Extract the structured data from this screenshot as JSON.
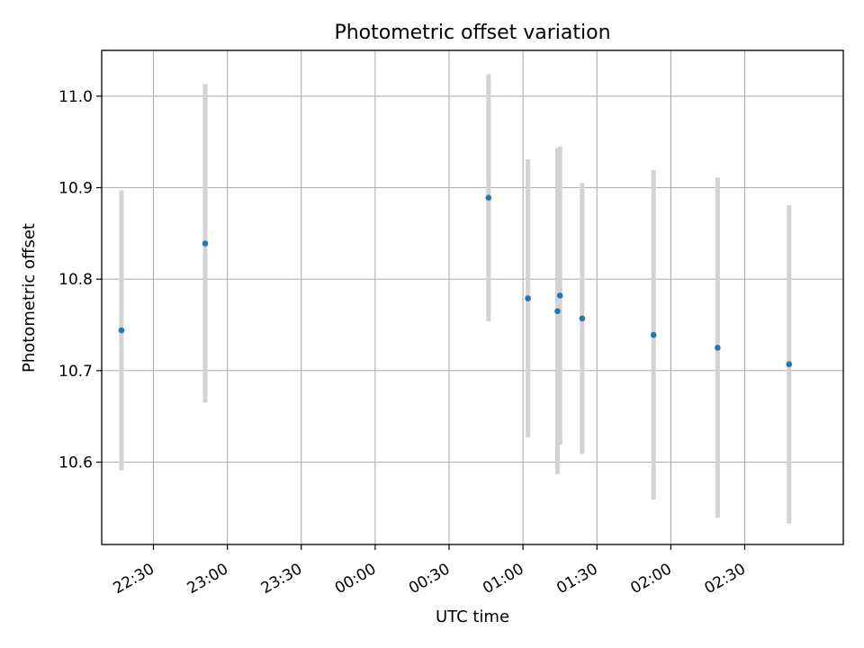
{
  "chart_data": {
    "type": "scatter",
    "title": "Photometric offset variation",
    "xlabel": "UTC time",
    "ylabel": "Photometric offset",
    "x_ticks": [
      "22:30",
      "23:00",
      "23:30",
      "00:00",
      "00:30",
      "01:00",
      "01:30",
      "02:00",
      "02:30"
    ],
    "y_ticks": [
      "10.6",
      "10.7",
      "10.8",
      "10.9",
      "11.0"
    ],
    "x_tick_values": [
      "22:30",
      "23:00",
      "23:30",
      "00:00",
      "00:30",
      "01:00",
      "01:30",
      "02:00",
      "02:30"
    ],
    "y_tick_values": [
      10.6,
      10.7,
      10.8,
      10.9,
      11.0
    ],
    "xlim": [
      "22:09",
      "03:10"
    ],
    "ylim": [
      10.51,
      11.05
    ],
    "grid": true,
    "points": [
      {
        "time": "22:17",
        "y": 10.744,
        "err": 0.153
      },
      {
        "time": "22:51",
        "y": 10.839,
        "err": 0.174
      },
      {
        "time": "00:46",
        "y": 10.889,
        "err": 0.135
      },
      {
        "time": "01:02",
        "y": 10.779,
        "err": 0.152
      },
      {
        "time": "01:14",
        "y": 10.765,
        "err": 0.178
      },
      {
        "time": "01:15",
        "y": 10.782,
        "err": 0.163
      },
      {
        "time": "01:24",
        "y": 10.757,
        "err": 0.148
      },
      {
        "time": "01:53",
        "y": 10.739,
        "err": 0.18
      },
      {
        "time": "02:19",
        "y": 10.725,
        "err": 0.186
      },
      {
        "time": "02:48",
        "y": 10.707,
        "err": 0.174
      }
    ],
    "colors": {
      "point": "#1f77b4",
      "errorbar": "#d3d3d3",
      "grid": "#b0b0b0"
    }
  }
}
